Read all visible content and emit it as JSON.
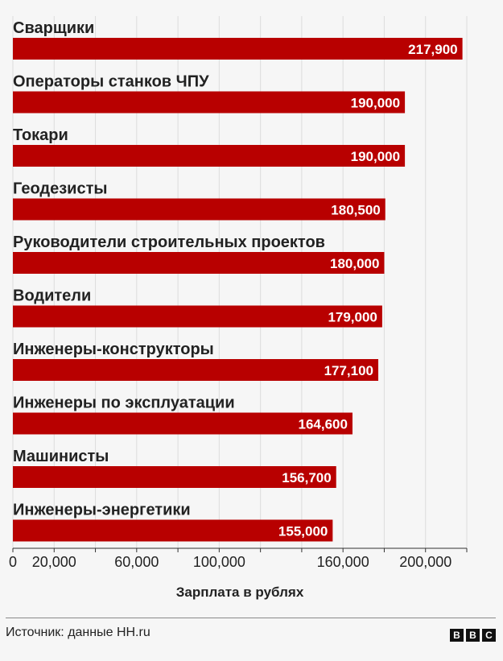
{
  "chart_data": {
    "type": "bar",
    "orientation": "horizontal",
    "categories": [
      "Сварщики",
      "Операторы станков ЧПУ",
      "Токари",
      "Геодезисты",
      "Руководители строительных проектов",
      "Водители",
      "Инженеры-конструкторы",
      "Инженеры по эксплуатации",
      "Машинисты",
      "Инженеры-энергетики"
    ],
    "values": [
      217900,
      190000,
      190000,
      180500,
      180000,
      179000,
      177100,
      164600,
      156700,
      155000
    ],
    "value_labels": [
      "217,900",
      "190,000",
      "190,000",
      "180,500",
      "180,000",
      "179,000",
      "177,100",
      "164,600",
      "156,700",
      "155,000"
    ],
    "xlabel": "Зарплата в рублях",
    "xlim": [
      0,
      220000
    ],
    "tick_values": [
      0,
      20000,
      40000,
      60000,
      80000,
      100000,
      120000,
      140000,
      160000,
      180000,
      200000,
      220000
    ],
    "tick_labels": [
      "0",
      "20,000",
      "",
      "60,000",
      "",
      "100,000",
      "",
      "",
      "160,000",
      "",
      "200,000",
      ""
    ],
    "grid": true,
    "bar_color": "#b80000"
  },
  "footer": {
    "source": "Источник: данные HH.ru",
    "logo_letters": [
      "B",
      "B",
      "C"
    ]
  }
}
